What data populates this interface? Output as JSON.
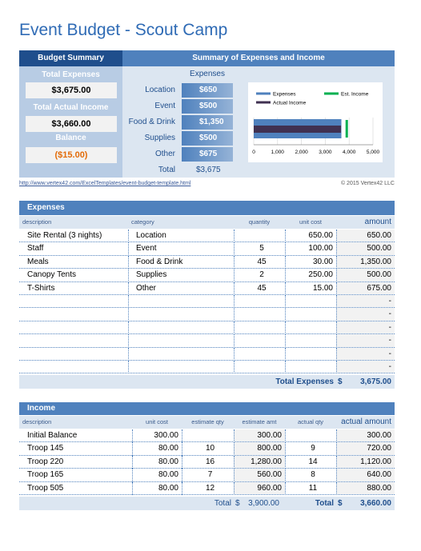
{
  "title": "Event Budget - Scout Camp",
  "summary": {
    "header": "Budget Summary",
    "total_expenses_label": "Total Expenses",
    "total_expenses": "$3,675.00",
    "total_income_label": "Total Actual Income",
    "total_income": "$3,660.00",
    "balance_label": "Balance",
    "balance": "($15.00)"
  },
  "expense_summary": {
    "header": "Summary of Expenses and Income",
    "subheader": "Expenses",
    "rows": [
      [
        "Location",
        "$650"
      ],
      [
        "Event",
        "$500"
      ],
      [
        "Food & Drink",
        "$1,350"
      ],
      [
        "Supplies",
        "$500"
      ],
      [
        "Other",
        "$675"
      ]
    ],
    "total_label": "Total",
    "total": "$3,675"
  },
  "chart": {
    "type": "bar",
    "series": [
      {
        "name": "Expenses",
        "color": "#4f81bd",
        "values": [
          3675
        ]
      },
      {
        "name": "Est. Income",
        "color": "#00b050",
        "values": [
          3900
        ]
      },
      {
        "name": "Actual Income",
        "color": "#403151",
        "values": [
          3660
        ]
      }
    ],
    "xlim": [
      0,
      5000
    ],
    "xticks": [
      0,
      {
        "value": 1000,
        "label": "1,000"
      },
      {
        "value": 2000,
        "label": "2,000"
      },
      {
        "value": 3000,
        "label": "3,000"
      },
      {
        "value": 4000,
        "label": "4,000"
      },
      {
        "value": 5000,
        "label": "5,000"
      }
    ]
  },
  "link": "http://www.vertex42.com/ExcelTemplates/event-budget-template.html",
  "copyright": "© 2015 Vertex42 LLC",
  "expenses": {
    "header": "Expenses",
    "columns": [
      "description",
      "category",
      "quantity",
      "unit cost",
      "amount"
    ],
    "rows": [
      [
        "Site Rental (3 nights)",
        "Location",
        null,
        "650.00",
        "650.00"
      ],
      [
        "Staff",
        "Event",
        "5",
        "100.00",
        "500.00"
      ],
      [
        "Meals",
        "Food & Drink",
        "45",
        "30.00",
        "1,350.00"
      ],
      [
        "Canopy Tents",
        "Supplies",
        "2",
        "250.00",
        "500.00"
      ],
      [
        "T-Shirts",
        "Other",
        "45",
        "15.00",
        "675.00"
      ],
      [
        null,
        null,
        null,
        null,
        "-"
      ],
      [
        null,
        null,
        null,
        null,
        "-"
      ],
      [
        null,
        null,
        null,
        null,
        "-"
      ],
      [
        null,
        null,
        null,
        null,
        "-"
      ],
      [
        null,
        null,
        null,
        null,
        "-"
      ],
      [
        null,
        null,
        null,
        null,
        "-"
      ]
    ],
    "total_label": "Total Expenses",
    "total_currency": "$",
    "total": "3,675.00"
  },
  "income": {
    "header": "Income",
    "columns": [
      "description",
      "unit cost",
      "estimate qty",
      "estimate amt",
      "actual qty",
      "actual amount"
    ],
    "rows": [
      [
        "Initial Balance",
        "300.00",
        null,
        "300.00",
        null,
        "300.00"
      ],
      [
        "Troop 145",
        "80.00",
        "10",
        "800.00",
        "9",
        "720.00"
      ],
      [
        "Troop 220",
        "80.00",
        "16",
        "1,280.00",
        "14",
        "1,120.00"
      ],
      [
        "Troop 165",
        "80.00",
        "7",
        "560.00",
        "8",
        "640.00"
      ],
      [
        "Troop 505",
        "80.00",
        "12",
        "960.00",
        "11",
        "880.00"
      ]
    ],
    "est_total_label": "Total",
    "est_total_currency": "$",
    "est_total": "3,900.00",
    "actual_total_label": "Total",
    "actual_total_currency": "$",
    "actual_total": "3,660.00"
  }
}
